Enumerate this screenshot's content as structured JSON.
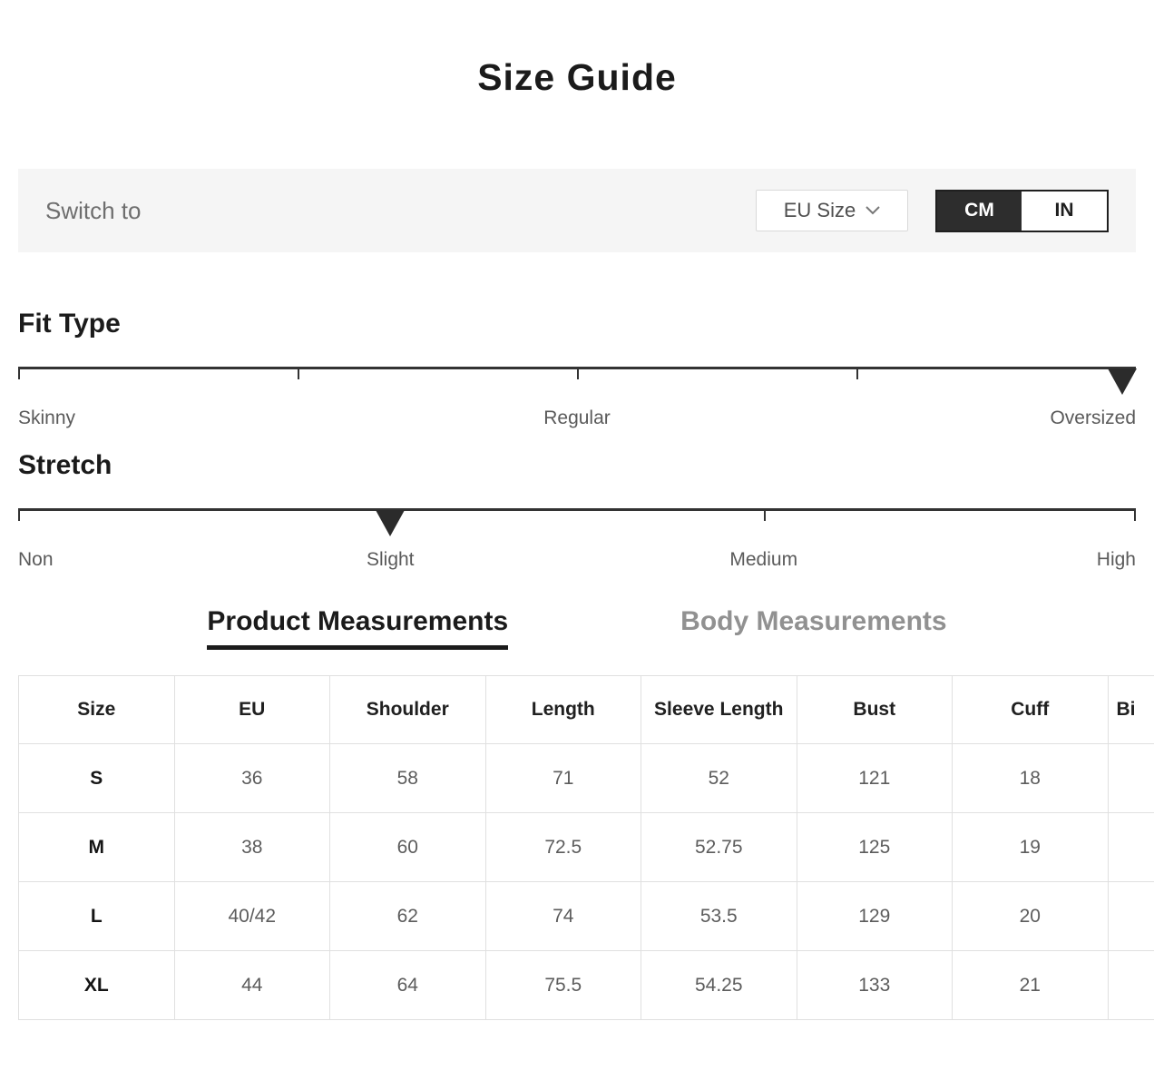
{
  "page": {
    "title": "Size Guide"
  },
  "toolbar": {
    "switch_label": "Switch to",
    "size_system_dropdown": {
      "value": "EU Size",
      "icon": "chevron-down-icon"
    },
    "unit_toggle": {
      "options": [
        "CM",
        "IN"
      ],
      "selected": "CM"
    }
  },
  "sliders": [
    {
      "id": "fit-type",
      "heading": "Fit Type",
      "selected": "Oversized",
      "ticks_pct": [
        0,
        25,
        50,
        75
      ],
      "marker_pct": 98.8,
      "labels": [
        {
          "text": "Skinny",
          "pct": 0,
          "align": "left"
        },
        {
          "text": "Regular",
          "pct": 50,
          "align": "center"
        },
        {
          "text": "Oversized",
          "pct": 100,
          "align": "right"
        }
      ]
    },
    {
      "id": "stretch",
      "heading": "Stretch",
      "selected": "Slight",
      "ticks_pct": [
        0,
        66.7,
        100
      ],
      "marker_pct": 33.3,
      "labels": [
        {
          "text": "Non",
          "pct": 0,
          "align": "left"
        },
        {
          "text": "Slight",
          "pct": 33.3,
          "align": "center"
        },
        {
          "text": "Medium",
          "pct": 66.7,
          "align": "center"
        },
        {
          "text": "High",
          "pct": 100,
          "align": "right"
        }
      ]
    }
  ],
  "tabs": [
    {
      "label": "Product Measurements",
      "active": true
    },
    {
      "label": "Body Measurements",
      "active": false
    }
  ],
  "table": {
    "columns": [
      "Size",
      "EU",
      "Shoulder",
      "Length",
      "Sleeve Length",
      "Bust",
      "Cuff",
      "Bi"
    ],
    "rows": [
      [
        "S",
        "36",
        "58",
        "71",
        "52",
        "121",
        "18",
        ""
      ],
      [
        "M",
        "38",
        "60",
        "72.5",
        "52.75",
        "125",
        "19",
        ""
      ],
      [
        "L",
        "40/42",
        "62",
        "74",
        "53.5",
        "129",
        "20",
        ""
      ],
      [
        "XL",
        "44",
        "64",
        "75.5",
        "54.25",
        "133",
        "21",
        ""
      ]
    ]
  },
  "colors": {
    "toolbar_bg": "#f5f5f5",
    "toggle_selected_bg": "#2d2d2d",
    "slider_track": "#333333",
    "inactive_tab_text": "#919191",
    "table_border": "#e0e0e0"
  }
}
